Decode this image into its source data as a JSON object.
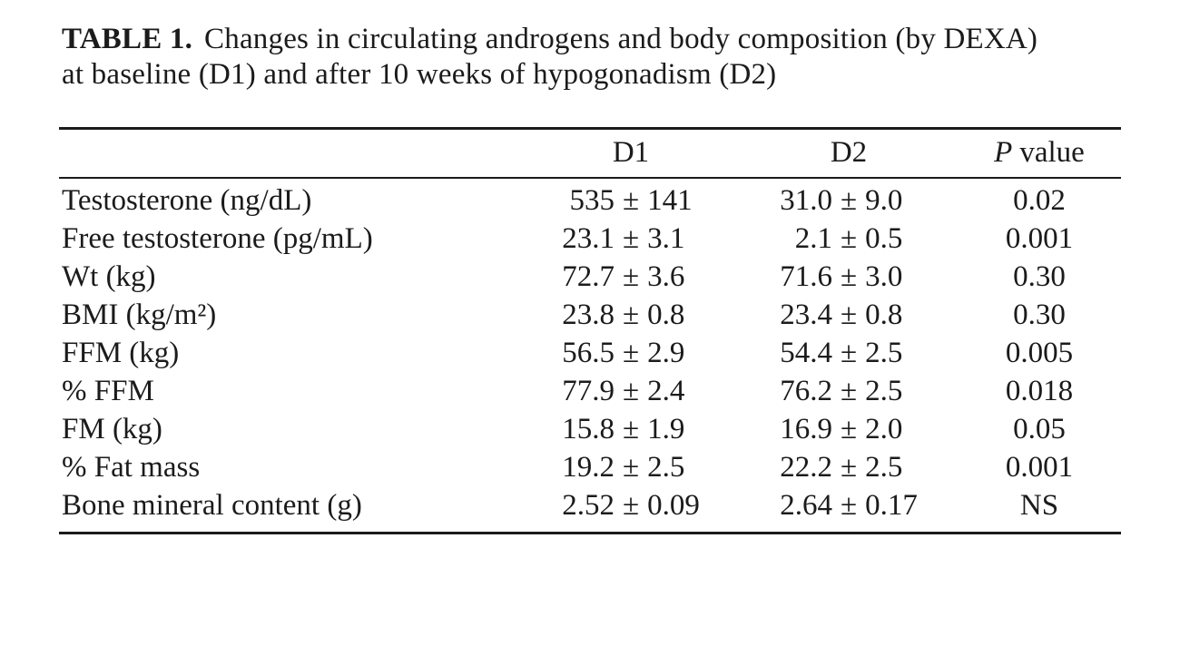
{
  "page": {
    "background": "#ffffff",
    "text_color": "#1b1b1b"
  },
  "caption": {
    "label": "TABLE 1.",
    "text": "Changes in circulating androgens and body composition (by DEXA) at baseline (D1) and after 10 weeks of hypogonadism (D2)"
  },
  "table": {
    "pm": "±",
    "headers": {
      "label": "",
      "d1": "D1",
      "d2": "D2",
      "p_italic": "P",
      "p_rest": "value"
    },
    "rows": [
      {
        "label": "Testosterone (ng/dL)",
        "d1_mean": "535",
        "d1_sd": "141",
        "d2_mean": "31.0",
        "d2_sd": "9.0",
        "p": "0.02"
      },
      {
        "label": "Free testosterone (pg/mL)",
        "d1_mean": "23.1",
        "d1_sd": "3.1",
        "d2_mean": "2.1",
        "d2_sd": "0.5",
        "p": "0.001"
      },
      {
        "label": "Wt (kg)",
        "d1_mean": "72.7",
        "d1_sd": "3.6",
        "d2_mean": "71.6",
        "d2_sd": "3.0",
        "p": "0.30"
      },
      {
        "label": "BMI (kg/m²)",
        "d1_mean": "23.8",
        "d1_sd": "0.8",
        "d2_mean": "23.4",
        "d2_sd": "0.8",
        "p": "0.30"
      },
      {
        "label": "FFM (kg)",
        "d1_mean": "56.5",
        "d1_sd": "2.9",
        "d2_mean": "54.4",
        "d2_sd": "2.5",
        "p": "0.005"
      },
      {
        "label": "% FFM",
        "d1_mean": "77.9",
        "d1_sd": "2.4",
        "d2_mean": "76.2",
        "d2_sd": "2.5",
        "p": "0.018"
      },
      {
        "label": "FM (kg)",
        "d1_mean": "15.8",
        "d1_sd": "1.9",
        "d2_mean": "16.9",
        "d2_sd": "2.0",
        "p": "0.05"
      },
      {
        "label": "% Fat mass",
        "d1_mean": "19.2",
        "d1_sd": "2.5",
        "d2_mean": "22.2",
        "d2_sd": "2.5",
        "p": "0.001"
      },
      {
        "label": "Bone mineral content (g)",
        "d1_mean": "2.52",
        "d1_sd": "0.09",
        "d2_mean": "2.64",
        "d2_sd": "0.17",
        "p": "NS"
      }
    ]
  }
}
